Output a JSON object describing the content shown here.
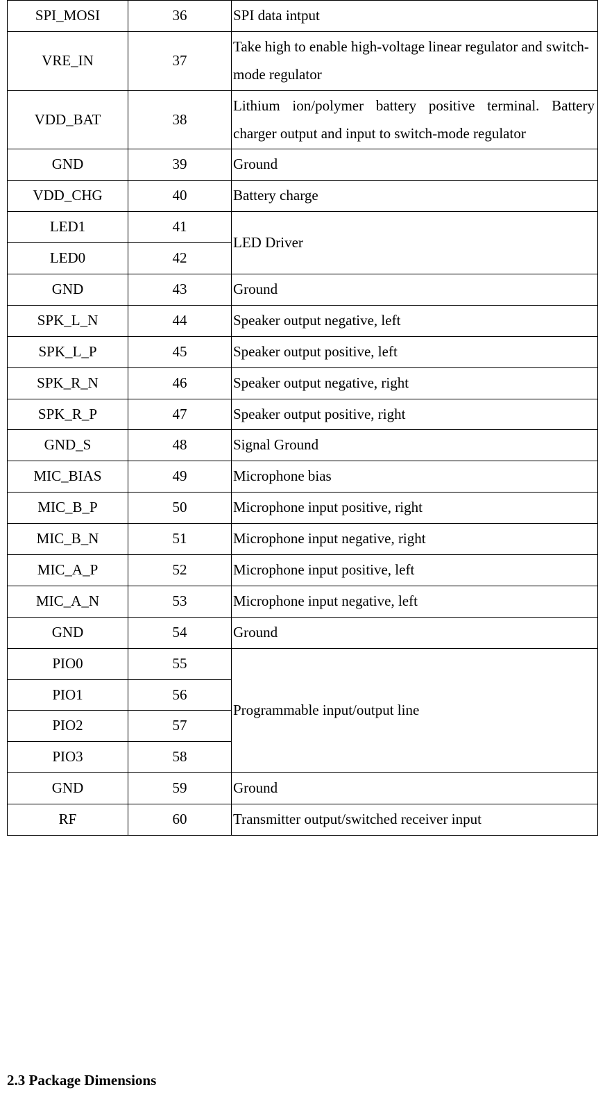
{
  "table": {
    "rows": [
      {
        "name": "SPI_MOSI",
        "pin": "36",
        "desc": "SPI data intput",
        "justify": false
      },
      {
        "name": "VRE_IN",
        "pin": "37",
        "desc": "Take high to enable high-voltage linear regulator and switch-mode regulator",
        "justify": false
      },
      {
        "name": "VDD_BAT",
        "pin": "38",
        "desc": "Lithium ion/polymer battery positive terminal. Battery charger output and input to switch-mode regulator",
        "justify": true
      },
      {
        "name": "GND",
        "pin": "39",
        "desc": "Ground",
        "justify": false
      },
      {
        "name": "VDD_CHG",
        "pin": "40",
        "desc": "Battery charge",
        "justify": false
      },
      {
        "name": "LED1",
        "pin": "41",
        "desc": "LED Driver",
        "rowspan": 2,
        "justify": false
      },
      {
        "name": "LED0",
        "pin": "42"
      },
      {
        "name": "GND",
        "pin": "43",
        "desc": "Ground",
        "justify": false
      },
      {
        "name": "SPK_L_N",
        "pin": "44",
        "desc": "Speaker output negative, left",
        "justify": false
      },
      {
        "name": "SPK_L_P",
        "pin": "45",
        "desc": "Speaker output positive, left",
        "justify": false
      },
      {
        "name": "SPK_R_N",
        "pin": "46",
        "desc": "Speaker output negative, right",
        "justify": false
      },
      {
        "name": "SPK_R_P",
        "pin": "47",
        "desc": "Speaker output positive, right",
        "justify": false
      },
      {
        "name": "GND_S",
        "pin": "48",
        "desc": "Signal Ground",
        "justify": false
      },
      {
        "name": "MIC_BIAS",
        "pin": "49",
        "desc": "Microphone bias",
        "justify": false
      },
      {
        "name": "MIC_B_P",
        "pin": "50",
        "desc": "Microphone input positive, right",
        "justify": false
      },
      {
        "name": "MIC_B_N",
        "pin": "51",
        "desc": "Microphone input negative, right",
        "justify": false
      },
      {
        "name": "MIC_A_P",
        "pin": "52",
        "desc": "Microphone input positive, left",
        "justify": false
      },
      {
        "name": "MIC_A_N",
        "pin": "53",
        "desc": "Microphone input negative, left",
        "justify": false
      },
      {
        "name": "GND",
        "pin": "54",
        "desc": "Ground",
        "justify": false
      },
      {
        "name": "PIO0",
        "pin": "55",
        "desc": "Programmable input/output line",
        "rowspan": 4,
        "justify": false
      },
      {
        "name": "PIO1",
        "pin": "56"
      },
      {
        "name": "PIO2",
        "pin": "57"
      },
      {
        "name": "PIO3",
        "pin": "58"
      },
      {
        "name": "GND",
        "pin": "59",
        "desc": "Ground",
        "justify": false
      },
      {
        "name": "RF",
        "pin": "60",
        "desc": "Transmitter output/switched receiver input",
        "justify": false
      }
    ]
  },
  "heading": "2.3 Package Dimensions"
}
